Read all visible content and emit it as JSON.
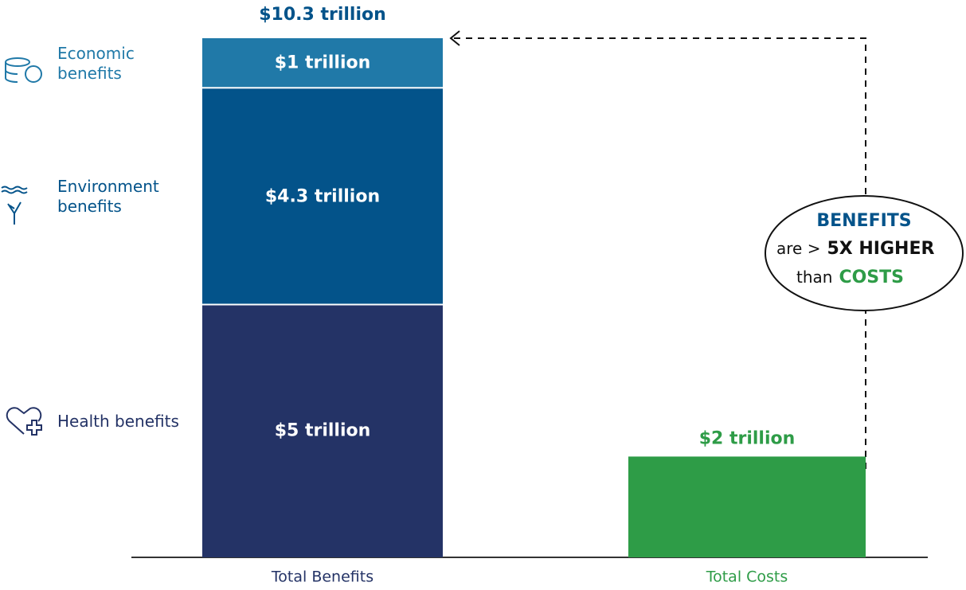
{
  "chart_data": {
    "type": "stacked-bar",
    "categories": [
      "Total Benefits",
      "Total Costs"
    ],
    "series": [
      {
        "name": "Health benefits",
        "color": "#243366",
        "values": [
          5,
          null
        ],
        "value_labels": [
          "$5 trillion",
          null
        ]
      },
      {
        "name": "Environment benefits",
        "color": "#03538a",
        "values": [
          4.3,
          null
        ],
        "value_labels": [
          "$4.3 trillion",
          null
        ]
      },
      {
        "name": "Economic benefits",
        "color": "#2079a8",
        "values": [
          1,
          null
        ],
        "value_labels": [
          "$1 trillion",
          null
        ]
      },
      {
        "color": "#2e9c47",
        "values": [
          null,
          2
        ],
        "value_labels": [
          null,
          "$2 trillion"
        ]
      }
    ],
    "total": {
      "value": 10.3,
      "label": "$10.3 trillion"
    },
    "annotation": {
      "line1": "BENEFITS",
      "line2a": "are >",
      "line2b": "5X HIGHER",
      "line3a": "than",
      "line3b": "COSTS"
    }
  }
}
